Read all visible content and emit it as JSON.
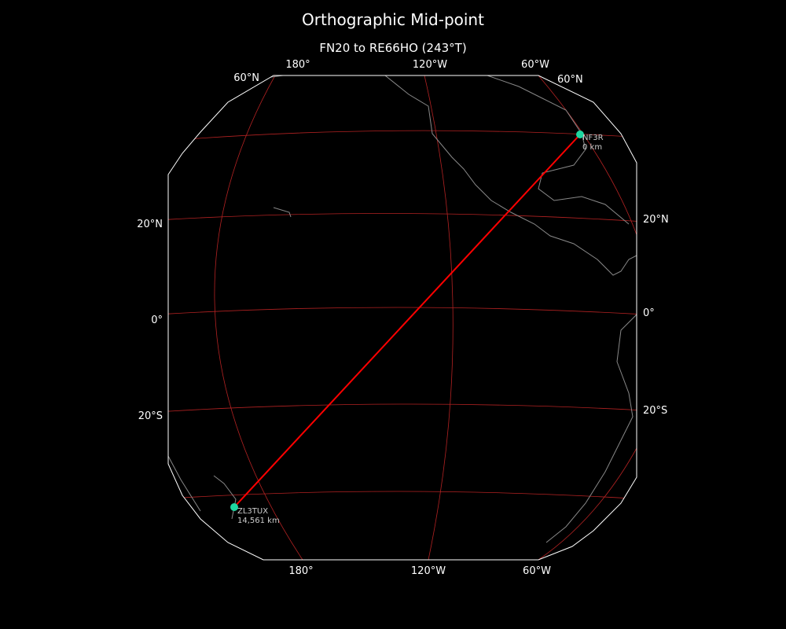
{
  "title": "Orthographic Mid-point",
  "subtitle": "FN20 to RE66HO (243°T)",
  "colors": {
    "background": "#000000",
    "path": "#ff0000",
    "graticule": "#b22222",
    "coastline": "#888888",
    "marker": "#1ed7a0",
    "border": "#ffffff"
  },
  "lon_labels_top": [
    "180°",
    "120°W",
    "60°W"
  ],
  "lon_labels_bottom": [
    "180°",
    "120°W",
    "60°W"
  ],
  "lat_labels_left": [
    "60°N",
    "20°N",
    "0°",
    "20°S"
  ],
  "lat_labels_right": [
    "60°N",
    "20°N",
    "0°",
    "20°S"
  ],
  "stations": [
    {
      "call": "NF3R",
      "distance": "0 km"
    },
    {
      "call": "ZL3TUX",
      "distance": "14,561 km"
    }
  ]
}
